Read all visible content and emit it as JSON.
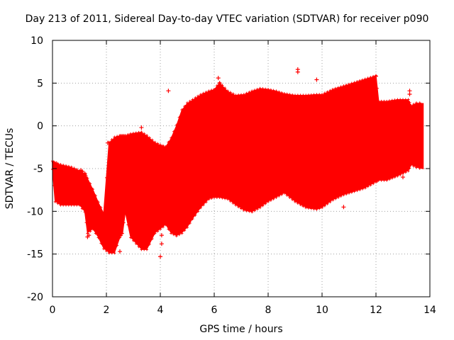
{
  "chart_data": {
    "type": "scatter",
    "title": "Day 213 of 2011, Sidereal Day-to-day VTEC variation (SDTVAR) for receiver p090",
    "xlabel": "GPS time / hours",
    "ylabel": "SDTVAR / TECUs",
    "xlim": [
      0,
      14
    ],
    "ylim": [
      -20,
      10
    ],
    "x_ticks": [
      0,
      2,
      4,
      6,
      8,
      10,
      12,
      14
    ],
    "y_ticks": [
      -20,
      -15,
      -10,
      -5,
      0,
      5,
      10
    ],
    "x_tick_labels": [
      "0",
      "2",
      "4",
      "6",
      "8",
      "10",
      "12",
      "14"
    ],
    "y_tick_labels": [
      "-20",
      "-15",
      "-10",
      "-5",
      "0",
      "5",
      "10"
    ],
    "grid": true,
    "series_color": "#ff0000",
    "series": [
      {
        "marker": "+",
        "envelope": [
          {
            "x": 0.0,
            "low": -5.0,
            "high": -4.2
          },
          {
            "x": 0.1,
            "low": -8.8,
            "high": -4.4
          },
          {
            "x": 0.3,
            "low": -9.2,
            "high": -4.6
          },
          {
            "x": 0.7,
            "low": -9.2,
            "high": -4.9
          },
          {
            "x": 1.0,
            "low": -9.2,
            "high": -5.3
          },
          {
            "x": 1.2,
            "low": -10.0,
            "high": -5.6
          },
          {
            "x": 1.3,
            "low": -12.5,
            "high": -6.2
          },
          {
            "x": 1.5,
            "low": -12.0,
            "high": -7.5
          },
          {
            "x": 1.7,
            "low": -13.0,
            "high": -9.0
          },
          {
            "x": 1.9,
            "low": -14.3,
            "high": -10.3
          },
          {
            "x": 2.1,
            "low": -14.8,
            "high": -2.0
          },
          {
            "x": 2.3,
            "low": -14.8,
            "high": -1.4
          },
          {
            "x": 2.5,
            "low": -13.0,
            "high": -1.2
          },
          {
            "x": 2.6,
            "low": -12.5,
            "high": -1.2
          },
          {
            "x": 2.7,
            "low": -10.0,
            "high": -1.2
          },
          {
            "x": 2.9,
            "low": -13.0,
            "high": -1.0
          },
          {
            "x": 3.3,
            "low": -14.4,
            "high": -0.8
          },
          {
            "x": 3.5,
            "low": -14.4,
            "high": -1.2
          },
          {
            "x": 3.8,
            "low": -12.5,
            "high": -2.0
          },
          {
            "x": 4.0,
            "low": -12.0,
            "high": -2.3
          },
          {
            "x": 4.2,
            "low": -11.5,
            "high": -2.5
          },
          {
            "x": 4.4,
            "low": -12.5,
            "high": -1.5
          },
          {
            "x": 4.6,
            "low": -12.8,
            "high": 0.0
          },
          {
            "x": 4.8,
            "low": -12.5,
            "high": 1.8
          },
          {
            "x": 5.0,
            "low": -11.8,
            "high": 2.6
          },
          {
            "x": 5.2,
            "low": -10.8,
            "high": 3.0
          },
          {
            "x": 5.5,
            "low": -9.5,
            "high": 3.6
          },
          {
            "x": 5.8,
            "low": -8.5,
            "high": 4.0
          },
          {
            "x": 6.0,
            "low": -8.3,
            "high": 4.2
          },
          {
            "x": 6.2,
            "low": -8.3,
            "high": 5.0
          },
          {
            "x": 6.5,
            "low": -8.5,
            "high": 4.0
          },
          {
            "x": 6.8,
            "low": -9.2,
            "high": 3.5
          },
          {
            "x": 7.1,
            "low": -9.8,
            "high": 3.6
          },
          {
            "x": 7.4,
            "low": -10.0,
            "high": 4.0
          },
          {
            "x": 7.7,
            "low": -9.5,
            "high": 4.3
          },
          {
            "x": 8.0,
            "low": -8.8,
            "high": 4.2
          },
          {
            "x": 8.3,
            "low": -8.3,
            "high": 4.0
          },
          {
            "x": 8.6,
            "low": -7.8,
            "high": 3.7
          },
          {
            "x": 9.0,
            "low": -8.8,
            "high": 3.5
          },
          {
            "x": 9.4,
            "low": -9.5,
            "high": 3.5
          },
          {
            "x": 9.8,
            "low": -9.7,
            "high": 3.6
          },
          {
            "x": 10.0,
            "low": -9.5,
            "high": 3.6
          },
          {
            "x": 10.4,
            "low": -8.6,
            "high": 4.2
          },
          {
            "x": 10.8,
            "low": -8.0,
            "high": 4.6
          },
          {
            "x": 11.2,
            "low": -7.6,
            "high": 5.0
          },
          {
            "x": 11.6,
            "low": -7.2,
            "high": 5.4
          },
          {
            "x": 12.0,
            "low": -6.5,
            "high": 5.8
          },
          {
            "x": 12.1,
            "low": -6.3,
            "high": 2.8
          },
          {
            "x": 12.4,
            "low": -6.3,
            "high": 2.8
          },
          {
            "x": 12.8,
            "low": -5.8,
            "high": 3.0
          },
          {
            "x": 13.2,
            "low": -5.2,
            "high": 3.0
          },
          {
            "x": 13.3,
            "low": -4.5,
            "high": 2.3
          },
          {
            "x": 13.5,
            "low": -4.8,
            "high": 2.6
          },
          {
            "x": 13.75,
            "low": -5.0,
            "high": 2.6
          }
        ],
        "points": [
          {
            "x": 0.05,
            "y": -4.3
          },
          {
            "x": 0.15,
            "y": -4.4
          },
          {
            "x": 1.05,
            "y": -5.2
          },
          {
            "x": 1.05,
            "y": -8.9
          },
          {
            "x": 1.1,
            "y": -5.3
          },
          {
            "x": 1.2,
            "y": -5.6
          },
          {
            "x": 1.25,
            "y": -8.0
          },
          {
            "x": 1.3,
            "y": -13.0
          },
          {
            "x": 1.35,
            "y": -12.8
          },
          {
            "x": 2.05,
            "y": -2.0
          },
          {
            "x": 2.5,
            "y": -14.7
          },
          {
            "x": 2.75,
            "y": -5.4
          },
          {
            "x": 3.3,
            "y": -0.2
          },
          {
            "x": 3.3,
            "y": -6.6
          },
          {
            "x": 3.3,
            "y": -7.0
          },
          {
            "x": 4.0,
            "y": -15.3
          },
          {
            "x": 4.05,
            "y": -12.8
          },
          {
            "x": 4.05,
            "y": -13.8
          },
          {
            "x": 4.3,
            "y": 4.1
          },
          {
            "x": 5.0,
            "y": 2.4
          },
          {
            "x": 6.15,
            "y": 5.6
          },
          {
            "x": 6.2,
            "y": 5.0
          },
          {
            "x": 9.1,
            "y": 6.6
          },
          {
            "x": 9.1,
            "y": 6.3
          },
          {
            "x": 9.25,
            "y": -9.1
          },
          {
            "x": 9.8,
            "y": 5.4
          },
          {
            "x": 10.8,
            "y": -9.5
          },
          {
            "x": 12.0,
            "y": 5.8
          },
          {
            "x": 13.25,
            "y": 3.7
          },
          {
            "x": 13.25,
            "y": 4.1
          },
          {
            "x": 13.0,
            "y": -6.0
          }
        ]
      }
    ]
  }
}
